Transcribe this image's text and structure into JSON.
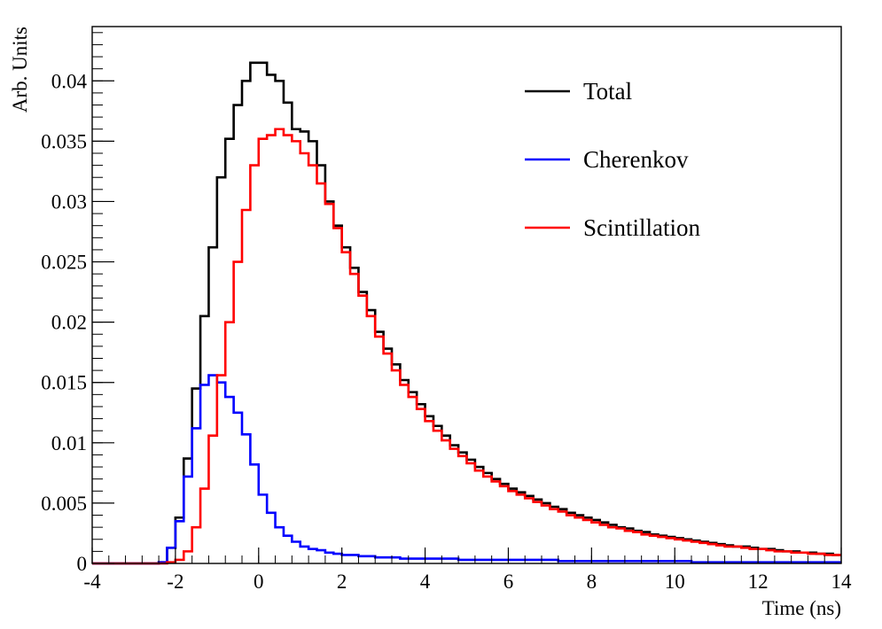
{
  "chart_data": {
    "type": "line",
    "style": "step-histogram",
    "title": "",
    "xlabel": "Time (ns)",
    "ylabel": "Arb. Units",
    "xlim": [
      -4,
      14
    ],
    "ylim": [
      0,
      0.0445
    ],
    "grid": false,
    "legend_position": "top-right",
    "x_ticks": [
      -4,
      -2,
      0,
      2,
      4,
      6,
      8,
      10,
      12,
      14
    ],
    "x_tick_labels": [
      "-4",
      "-2",
      "0",
      "2",
      "4",
      "6",
      "8",
      "10",
      "12",
      "14"
    ],
    "y_ticks": [
      0,
      0.005,
      0.01,
      0.015,
      0.02,
      0.025,
      0.03,
      0.035,
      0.04
    ],
    "y_tick_labels": [
      "0",
      "0.005",
      "0.01",
      "0.015",
      "0.02",
      "0.025",
      "0.03",
      "0.035",
      "0.04"
    ],
    "bin_width": 0.2,
    "x": [
      -4.0,
      -3.8,
      -3.6,
      -3.4,
      -3.2,
      -3.0,
      -2.8,
      -2.6,
      -2.4,
      -2.2,
      -2.0,
      -1.8,
      -1.6,
      -1.4,
      -1.2,
      -1.0,
      -0.8,
      -0.6,
      -0.4,
      -0.2,
      0.0,
      0.2,
      0.4,
      0.6,
      0.8,
      1.0,
      1.2,
      1.4,
      1.6,
      1.8,
      2.0,
      2.2,
      2.4,
      2.6,
      2.8,
      3.0,
      3.2,
      3.4,
      3.6,
      3.8,
      4.0,
      4.2,
      4.4,
      4.6,
      4.8,
      5.0,
      5.2,
      5.4,
      5.6,
      5.8,
      6.0,
      6.2,
      6.4,
      6.6,
      6.8,
      7.0,
      7.2,
      7.4,
      7.6,
      7.8,
      8.0,
      8.2,
      8.4,
      8.6,
      8.8,
      9.0,
      9.2,
      9.4,
      9.6,
      9.8,
      10.0,
      10.2,
      10.4,
      10.6,
      10.8,
      11.0,
      11.2,
      11.4,
      11.6,
      11.8,
      12.0,
      12.2,
      12.4,
      12.6,
      12.8,
      13.0,
      13.2,
      13.4,
      13.6,
      13.8
    ],
    "series": [
      {
        "name": "Total",
        "color": "#000000",
        "values": [
          0,
          0,
          0,
          0,
          0,
          0,
          0,
          0,
          0.0001,
          0.0013,
          0.0038,
          0.0087,
          0.0145,
          0.0205,
          0.0262,
          0.032,
          0.0352,
          0.038,
          0.04,
          0.0415,
          0.0415,
          0.0405,
          0.04,
          0.0382,
          0.036,
          0.0358,
          0.035,
          0.033,
          0.03,
          0.028,
          0.0262,
          0.0245,
          0.0225,
          0.021,
          0.0192,
          0.0178,
          0.0165,
          0.0152,
          0.0142,
          0.0132,
          0.0122,
          0.0114,
          0.0106,
          0.0098,
          0.0092,
          0.0086,
          0.008,
          0.0075,
          0.007,
          0.0066,
          0.0062,
          0.0059,
          0.0056,
          0.0053,
          0.005,
          0.0047,
          0.0045,
          0.0042,
          0.004,
          0.0038,
          0.0036,
          0.0034,
          0.0032,
          0.003,
          0.0029,
          0.0027,
          0.0026,
          0.0024,
          0.0023,
          0.0022,
          0.0021,
          0.002,
          0.0019,
          0.0018,
          0.0017,
          0.0016,
          0.0015,
          0.0014,
          0.0014,
          0.0013,
          0.0012,
          0.0012,
          0.0011,
          0.001,
          0.001,
          0.0009,
          0.0009,
          0.0008,
          0.0008,
          0.0007
        ]
      },
      {
        "name": "Cherenkov",
        "color": "#0000ff",
        "values": [
          0,
          0,
          0,
          0,
          0,
          0,
          0,
          0,
          0.0001,
          0.0013,
          0.0035,
          0.0072,
          0.0112,
          0.0148,
          0.0156,
          0.015,
          0.0138,
          0.0125,
          0.0107,
          0.0082,
          0.0057,
          0.0042,
          0.003,
          0.0023,
          0.0018,
          0.0014,
          0.0012,
          0.0011,
          0.0009,
          0.0008,
          0.0007,
          0.0007,
          0.0006,
          0.0006,
          0.0005,
          0.0005,
          0.0005,
          0.0004,
          0.0004,
          0.0004,
          0.0004,
          0.0004,
          0.0004,
          0.0004,
          0.0003,
          0.0003,
          0.0003,
          0.0003,
          0.0003,
          0.0003,
          0.0003,
          0.0003,
          0.0003,
          0.0003,
          0.0003,
          0.0003,
          0.0002,
          0.0002,
          0.0002,
          0.0002,
          0.0002,
          0.0002,
          0.0002,
          0.0002,
          0.0002,
          0.0002,
          0.0002,
          0.0002,
          0.0002,
          0.0002,
          0.0002,
          0.0002,
          0.0001,
          0.0001,
          0.0001,
          0.0001,
          0.0001,
          0.0001,
          0.0001,
          0.0001,
          0.0001,
          0.0001,
          0.0001,
          0.0001,
          0.0001,
          0.0001,
          0.0001,
          0.0001,
          0.0001,
          0.0001
        ]
      },
      {
        "name": "Scintillation",
        "color": "#ff0000",
        "values": [
          0,
          0,
          0,
          0,
          0,
          0,
          0,
          0,
          0,
          0.0001,
          0.0003,
          0.001,
          0.003,
          0.0062,
          0.0106,
          0.0156,
          0.02,
          0.025,
          0.0293,
          0.033,
          0.0352,
          0.0355,
          0.036,
          0.0355,
          0.035,
          0.034,
          0.033,
          0.0315,
          0.0298,
          0.0278,
          0.0258,
          0.024,
          0.0222,
          0.0205,
          0.0188,
          0.0174,
          0.016,
          0.0148,
          0.0138,
          0.0128,
          0.0118,
          0.011,
          0.0102,
          0.0095,
          0.0089,
          0.0083,
          0.0077,
          0.0072,
          0.0068,
          0.0064,
          0.006,
          0.0057,
          0.0054,
          0.0051,
          0.0048,
          0.0045,
          0.0043,
          0.004,
          0.0038,
          0.0036,
          0.0034,
          0.0032,
          0.003,
          0.0029,
          0.0027,
          0.0026,
          0.0024,
          0.0023,
          0.0022,
          0.0021,
          0.002,
          0.0019,
          0.0018,
          0.0017,
          0.0016,
          0.0015,
          0.0014,
          0.0014,
          0.0013,
          0.0012,
          0.0012,
          0.0011,
          0.001,
          0.001,
          0.0009,
          0.0009,
          0.0008,
          0.0008,
          0.0007,
          0.0007
        ]
      }
    ]
  }
}
